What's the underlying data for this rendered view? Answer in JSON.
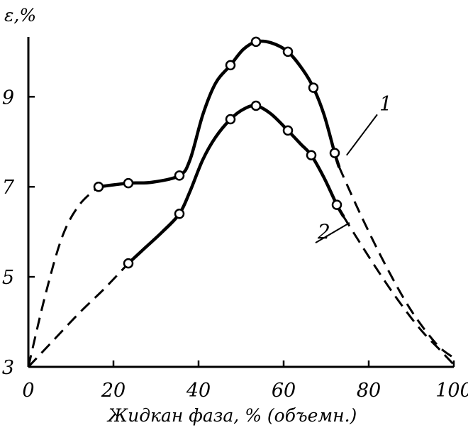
{
  "chart_data": {
    "type": "line",
    "ylabel": "ε,%",
    "xlabel": "Жидкан фаза, % (объемн.)",
    "xlim": [
      0,
      100
    ],
    "ylim": [
      3,
      10.25
    ],
    "x_ticks": [
      0,
      20,
      40,
      60,
      80,
      100
    ],
    "y_ticks": [
      3,
      5,
      7,
      9
    ],
    "grid": false,
    "series": [
      {
        "name": "1",
        "points": [
          [
            16.5,
            7.0
          ],
          [
            23.5,
            7.08
          ],
          [
            35.5,
            7.25
          ],
          [
            47.5,
            9.7
          ],
          [
            53.5,
            10.22
          ],
          [
            61,
            10.0
          ],
          [
            67,
            9.2
          ],
          [
            72,
            7.75
          ]
        ],
        "solid_curve": [
          [
            16.5,
            7.0
          ],
          [
            23.5,
            7.08
          ],
          [
            29,
            7.1
          ],
          [
            35.5,
            7.25
          ],
          [
            38,
            7.6
          ],
          [
            41,
            8.6
          ],
          [
            44,
            9.3
          ],
          [
            47.5,
            9.7
          ],
          [
            50.5,
            10.05
          ],
          [
            53.5,
            10.22
          ],
          [
            57,
            10.2
          ],
          [
            61,
            10.0
          ],
          [
            64.5,
            9.6
          ],
          [
            67,
            9.2
          ],
          [
            69.5,
            8.6
          ],
          [
            72,
            7.75
          ],
          [
            73,
            7.45
          ]
        ],
        "dashed_curve": [
          [
            0,
            3.0
          ],
          [
            4,
            4.6
          ],
          [
            8,
            5.9
          ],
          [
            12,
            6.6
          ],
          [
            16.5,
            7.0
          ]
        ],
        "dashed_extension": [
          [
            73,
            7.45
          ],
          [
            78,
            6.4
          ],
          [
            84,
            5.25
          ],
          [
            90,
            4.25
          ],
          [
            96,
            3.5
          ],
          [
            100,
            3.2
          ]
        ]
      },
      {
        "name": "2",
        "points": [
          [
            23.5,
            5.3
          ],
          [
            35.5,
            6.4
          ],
          [
            47.5,
            8.5
          ],
          [
            53.5,
            8.8
          ],
          [
            61,
            8.25
          ],
          [
            66.5,
            7.7
          ],
          [
            72.5,
            6.6
          ]
        ],
        "solid_curve": [
          [
            23.5,
            5.3
          ],
          [
            27.5,
            5.65
          ],
          [
            31.5,
            6.0
          ],
          [
            35.5,
            6.4
          ],
          [
            38,
            6.9
          ],
          [
            41,
            7.6
          ],
          [
            44,
            8.1
          ],
          [
            47.5,
            8.5
          ],
          [
            50.5,
            8.72
          ],
          [
            53.5,
            8.8
          ],
          [
            57,
            8.62
          ],
          [
            61,
            8.25
          ],
          [
            64,
            7.95
          ],
          [
            66.5,
            7.7
          ],
          [
            69.5,
            7.2
          ],
          [
            72.5,
            6.6
          ],
          [
            74,
            6.35
          ]
        ],
        "dashed_curve": [
          [
            0,
            3.0
          ],
          [
            6,
            3.6
          ],
          [
            12,
            4.2
          ],
          [
            18,
            4.75
          ],
          [
            23.5,
            5.3
          ]
        ],
        "dashed_extension": [
          [
            74,
            6.35
          ],
          [
            80,
            5.45
          ],
          [
            86,
            4.6
          ],
          [
            92,
            3.85
          ],
          [
            97,
            3.35
          ],
          [
            100,
            3.05
          ]
        ]
      }
    ],
    "series_labels": [
      {
        "text": "1",
        "x": 82.5,
        "y": 8.7,
        "leader_to": [
          74.8,
          7.7
        ]
      },
      {
        "text": "2",
        "x": 68,
        "y": 5.85,
        "leader_to": [
          75.5,
          6.2
        ]
      }
    ]
  }
}
